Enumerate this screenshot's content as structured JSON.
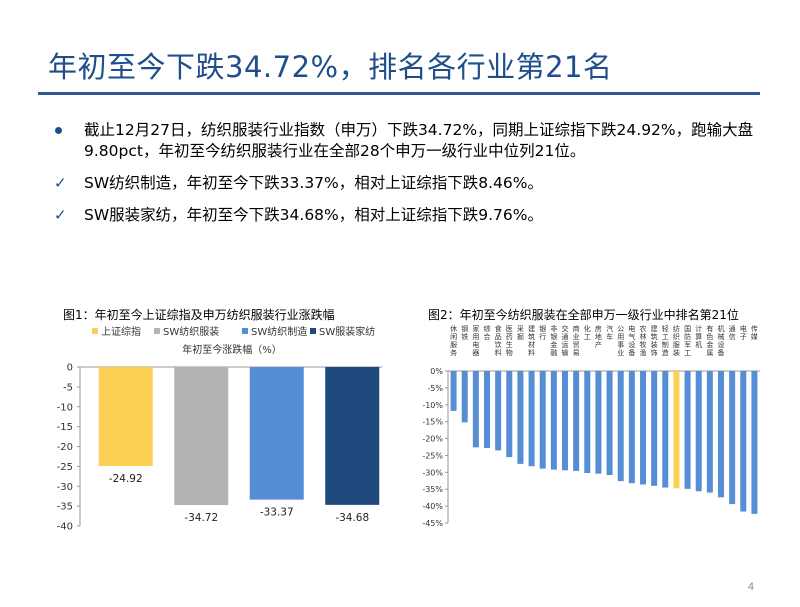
{
  "slide": {
    "title": "年初至今下跌34.72%，排名各行业第21名",
    "page_number": "4",
    "bullets": [
      {
        "marker": "dot-icon",
        "text": "截止12月27日，纺织服装行业指数（申万）下跌34.72%，同期上证综指下跌24.92%，跑输大盘9.80pct，年初至今纺织服装行业在全部28个申万一级行业中位列21位。"
      },
      {
        "marker": "check-icon",
        "text": "SW纺织制造，年初至今下跌33.37%，相对上证综指下跌8.46%。"
      },
      {
        "marker": "check-icon",
        "text": "SW服装家纺，年初至今下跌34.68%，相对上证综指下跌9.76%。"
      }
    ]
  },
  "figure1": {
    "title": "图1：年初至今上证综指及申万纺织服装行业涨跌幅"
  },
  "figure2": {
    "title": "图2：年初至今纺织服装在全部申万一级行业中排名第21位"
  },
  "chart_data": [
    {
      "type": "bar",
      "title": "年初至今涨跌幅（%）",
      "categories": [
        "上证综指",
        "SW纺织服装",
        "SW纺织制造",
        "SW服装家纺"
      ],
      "values": [
        -24.92,
        -34.72,
        -33.37,
        -34.68
      ],
      "colors": [
        "#fcd054",
        "#b3b3b3",
        "#558ed5",
        "#1f497d"
      ],
      "ylim": [
        -40,
        0
      ],
      "yticks": [
        0,
        -5,
        -10,
        -15,
        -20,
        -25,
        -30,
        -35,
        -40
      ],
      "legend": "top",
      "grid": false
    },
    {
      "type": "bar",
      "categories": [
        "休闲服务",
        "钢铁",
        "家用电器",
        "综合",
        "食品饮料",
        "医药生物",
        "采掘",
        "建筑材料",
        "银行",
        "非银金融",
        "交通运输",
        "商业贸易",
        "化工",
        "房地产",
        "汽车",
        "公用事业",
        "电气设备",
        "农林牧渔",
        "建筑装饰",
        "轻工制造",
        "纺织服装",
        "国防军工",
        "计算机",
        "有色金属",
        "机械设备",
        "通信",
        "电子",
        "传媒"
      ],
      "values": [
        -11.8,
        -15.2,
        -22.6,
        -22.8,
        -23.5,
        -25.5,
        -27.5,
        -28.2,
        -28.9,
        -29.2,
        -29.4,
        -29.6,
        -30.2,
        -30.4,
        -30.8,
        -32.6,
        -33.2,
        -33.6,
        -34.0,
        -34.5,
        -34.72,
        -34.9,
        -35.6,
        -36.0,
        -37.4,
        -39.4,
        -41.6,
        -42.3
      ],
      "highlight_index": 20,
      "colors": {
        "default": "#558ed5",
        "highlight": "#fcd054"
      },
      "ylim": [
        -45,
        0
      ],
      "yticks": [
        "0%",
        "-5%",
        "-10%",
        "-15%",
        "-20%",
        "-25%",
        "-30%",
        "-35%",
        "-40%",
        "-45%"
      ],
      "grid": false
    }
  ]
}
